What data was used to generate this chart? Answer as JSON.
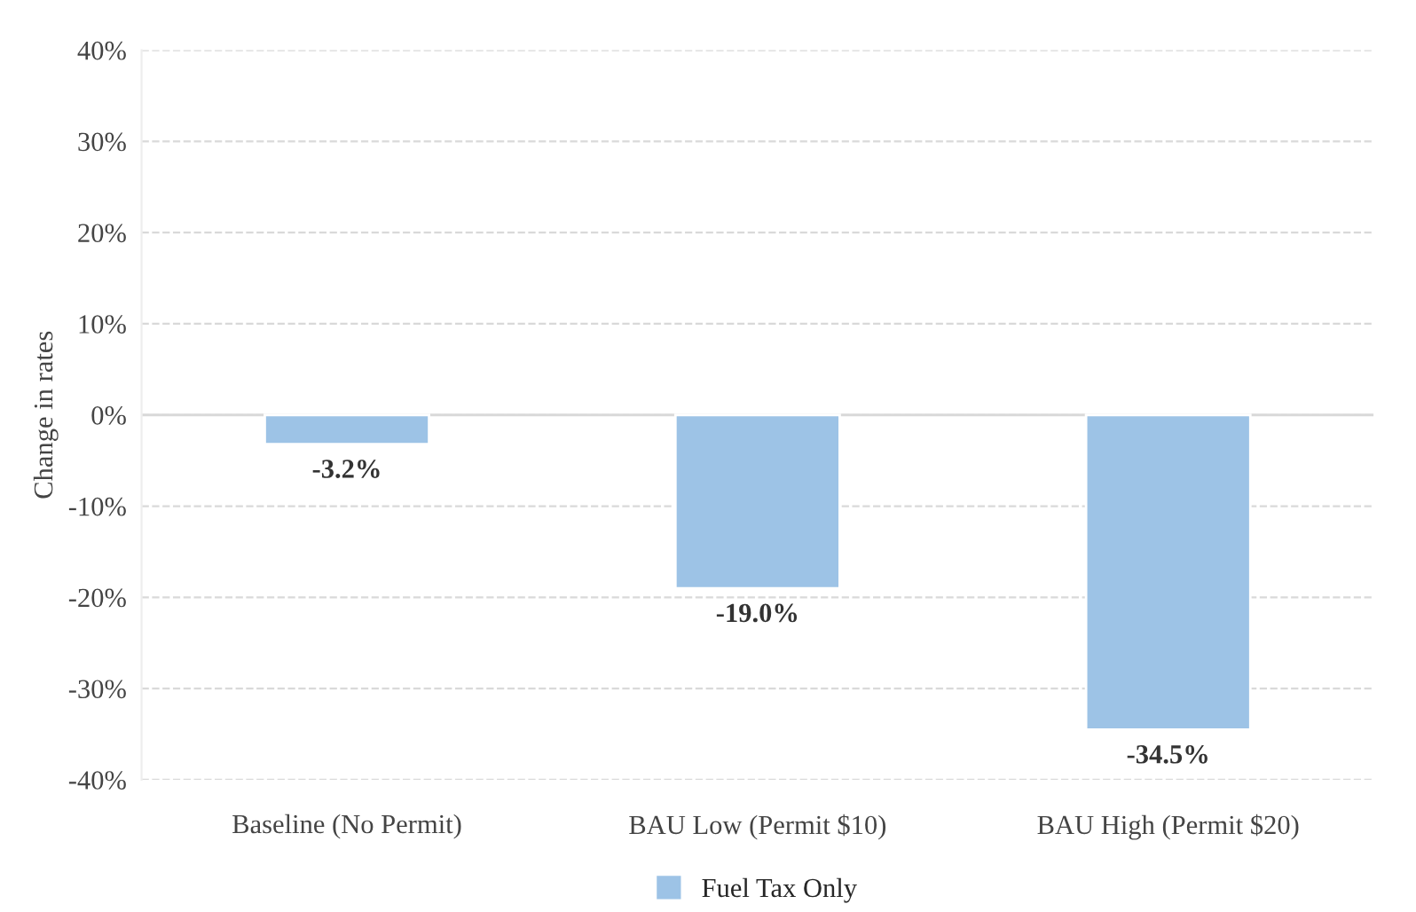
{
  "chart_data": {
    "type": "bar",
    "ylabel": "Change in rates",
    "categories": [
      "Baseline (No Permit)",
      "BAU Low (Permit $10)",
      "BAU High (Permit $20)"
    ],
    "series": [
      {
        "name": "Fuel Tax Only",
        "color": "#9dc3e6",
        "values": [
          -3.2,
          -19.0,
          -34.5
        ],
        "value_labels": [
          "-3.2%",
          "-19.0%",
          "-34.5%"
        ]
      }
    ],
    "ylim": [
      -40,
      40
    ],
    "yticks": [
      {
        "value": -40,
        "label": "-40%"
      },
      {
        "value": -30,
        "label": "-30%"
      },
      {
        "value": -20,
        "label": "-20%"
      },
      {
        "value": -10,
        "label": "-10%"
      },
      {
        "value": 0,
        "label": "0%"
      },
      {
        "value": 10,
        "label": "10%"
      },
      {
        "value": 20,
        "label": "20%"
      },
      {
        "value": 30,
        "label": "30%"
      },
      {
        "value": 40,
        "label": "40%"
      }
    ],
    "grid": "y",
    "legend": "bottom"
  }
}
